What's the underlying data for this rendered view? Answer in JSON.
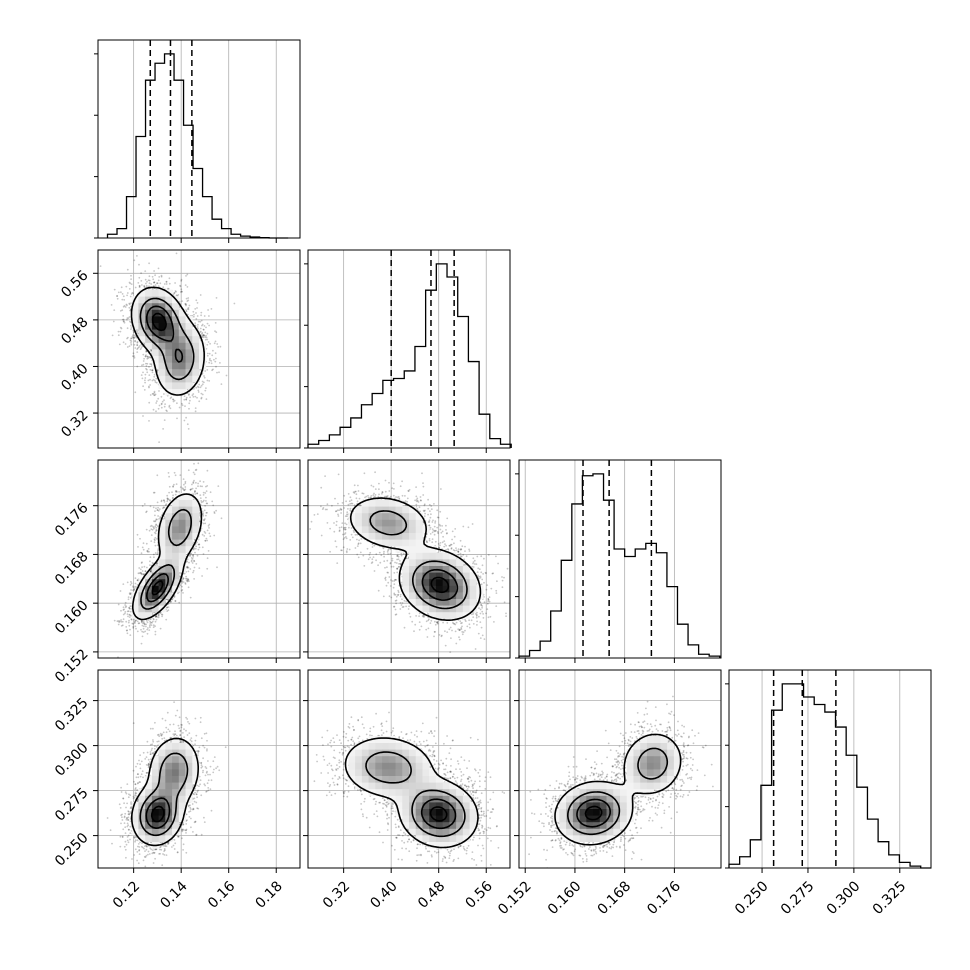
{
  "chart_data": {
    "type": "corner",
    "title": "",
    "parameters": [
      {
        "range": [
          0.105,
          0.19
        ],
        "ticks": [
          "0.12",
          "0.14",
          "0.16",
          "0.18"
        ],
        "tick_values": [
          0.12,
          0.14,
          0.16,
          0.18
        ]
      },
      {
        "range": [
          0.26,
          0.6
        ],
        "ticks": [
          "0.32",
          "0.40",
          "0.48",
          "0.56"
        ],
        "tick_values": [
          0.32,
          0.4,
          0.48,
          0.56
        ]
      },
      {
        "range": [
          0.151,
          0.1835
        ],
        "ticks": [
          "0.152",
          "0.160",
          "0.168",
          "0.176"
        ],
        "tick_values": [
          0.152,
          0.16,
          0.168,
          0.176
        ]
      },
      {
        "range": [
          0.232,
          0.342
        ],
        "ticks": [
          "0.250",
          "0.275",
          "0.300",
          "0.325"
        ],
        "tick_values": [
          0.25,
          0.275,
          0.3,
          0.325
        ]
      }
    ],
    "histograms": [
      {
        "param": 0,
        "bin_edges": [
          0.109,
          0.113,
          0.117,
          0.121,
          0.125,
          0.129,
          0.133,
          0.137,
          0.141,
          0.145,
          0.149,
          0.153,
          0.157,
          0.161,
          0.165,
          0.169,
          0.173,
          0.177,
          0.181,
          0.185
        ],
        "counts": [
          2,
          5,
          22,
          54,
          84,
          93,
          98,
          84,
          60,
          37,
          22,
          10,
          5,
          2,
          1,
          0.5,
          0.2,
          0,
          0
        ],
        "quantiles": [
          0.127,
          0.1355,
          0.1445
        ]
      },
      {
        "param": 1,
        "bin_edges": [
          0.26,
          0.278,
          0.296,
          0.314,
          0.332,
          0.35,
          0.368,
          0.386,
          0.404,
          0.422,
          0.44,
          0.458,
          0.476,
          0.494,
          0.512,
          0.53,
          0.548,
          0.566,
          0.584,
          0.602
        ],
        "counts": [
          2,
          4,
          7,
          11,
          16,
          23,
          29,
          36,
          37,
          41,
          54,
          84,
          98,
          91,
          70,
          46,
          18,
          5,
          2
        ],
        "quantiles": [
          0.4,
          0.467,
          0.506
        ]
      },
      {
        "param": 2,
        "bin_edges": [
          0.151,
          0.1527,
          0.1544,
          0.1561,
          0.1578,
          0.1595,
          0.1612,
          0.1629,
          0.1646,
          0.1663,
          0.168,
          0.1697,
          0.1714,
          0.1731,
          0.1748,
          0.1765,
          0.1782,
          0.1799,
          0.1816,
          0.1833
        ],
        "counts": [
          1,
          4,
          9,
          25,
          52,
          82,
          97,
          98,
          84,
          58,
          54,
          58,
          61,
          56,
          38,
          18,
          7,
          2,
          1
        ],
        "quantiles": [
          0.1613,
          0.1655,
          0.1723
        ]
      },
      {
        "param": 3,
        "bin_edges": [
          0.232,
          0.2378,
          0.2436,
          0.2494,
          0.2552,
          0.261,
          0.2668,
          0.2726,
          0.2784,
          0.2842,
          0.29,
          0.2958,
          0.3016,
          0.3074,
          0.3132,
          0.319,
          0.3248,
          0.3306,
          0.3364,
          0.3422
        ],
        "counts": [
          2,
          6,
          15,
          44,
          84,
          98,
          98,
          91,
          87,
          83,
          75,
          60,
          43,
          26,
          14,
          7,
          3,
          1,
          0
        ],
        "quantiles": [
          0.2563,
          0.2719,
          0.2902
        ]
      }
    ],
    "panels": [
      {
        "x": 0,
        "y": 1,
        "modes": [
          {
            "cx": 0.1305,
            "cy": 0.478,
            "sx": 0.0055,
            "sy": 0.028,
            "rho": -0.2,
            "w": 1.0
          },
          {
            "cx": 0.1395,
            "cy": 0.412,
            "sx": 0.0055,
            "sy": 0.033,
            "rho": 0.1,
            "w": 0.65
          }
        ]
      },
      {
        "x": 0,
        "y": 2,
        "modes": [
          {
            "cx": 0.13,
            "cy": 0.1625,
            "sx": 0.005,
            "sy": 0.0025,
            "rho": 0.6,
            "w": 1.0
          },
          {
            "cx": 0.1395,
            "cy": 0.1725,
            "sx": 0.005,
            "sy": 0.003,
            "rho": 0.3,
            "w": 0.6
          }
        ]
      },
      {
        "x": 1,
        "y": 2,
        "modes": [
          {
            "cx": 0.482,
            "cy": 0.163,
            "sx": 0.033,
            "sy": 0.0028,
            "rho": -0.2,
            "w": 1.0
          },
          {
            "cx": 0.395,
            "cy": 0.1732,
            "sx": 0.036,
            "sy": 0.0023,
            "rho": -0.2,
            "w": 0.55
          }
        ]
      },
      {
        "x": 0,
        "y": 3,
        "modes": [
          {
            "cx": 0.13,
            "cy": 0.2615,
            "sx": 0.0052,
            "sy": 0.0082,
            "rho": 0.1,
            "w": 1.0
          },
          {
            "cx": 0.137,
            "cy": 0.2855,
            "sx": 0.0055,
            "sy": 0.01,
            "rho": 0.1,
            "w": 0.65
          }
        ]
      },
      {
        "x": 1,
        "y": 3,
        "modes": [
          {
            "cx": 0.48,
            "cy": 0.262,
            "sx": 0.032,
            "sy": 0.009,
            "rho": -0.1,
            "w": 1.0
          },
          {
            "cx": 0.395,
            "cy": 0.288,
            "sx": 0.04,
            "sy": 0.009,
            "rho": -0.1,
            "w": 0.6
          }
        ]
      },
      {
        "x": 2,
        "y": 3,
        "modes": [
          {
            "cx": 0.163,
            "cy": 0.2625,
            "sx": 0.003,
            "sy": 0.0085,
            "rho": 0.1,
            "w": 1.0
          },
          {
            "cx": 0.1725,
            "cy": 0.29,
            "sx": 0.0025,
            "sy": 0.009,
            "rho": 0.1,
            "w": 0.6
          }
        ]
      }
    ],
    "grid": true,
    "histogram_quantile_lines": "dashed"
  }
}
